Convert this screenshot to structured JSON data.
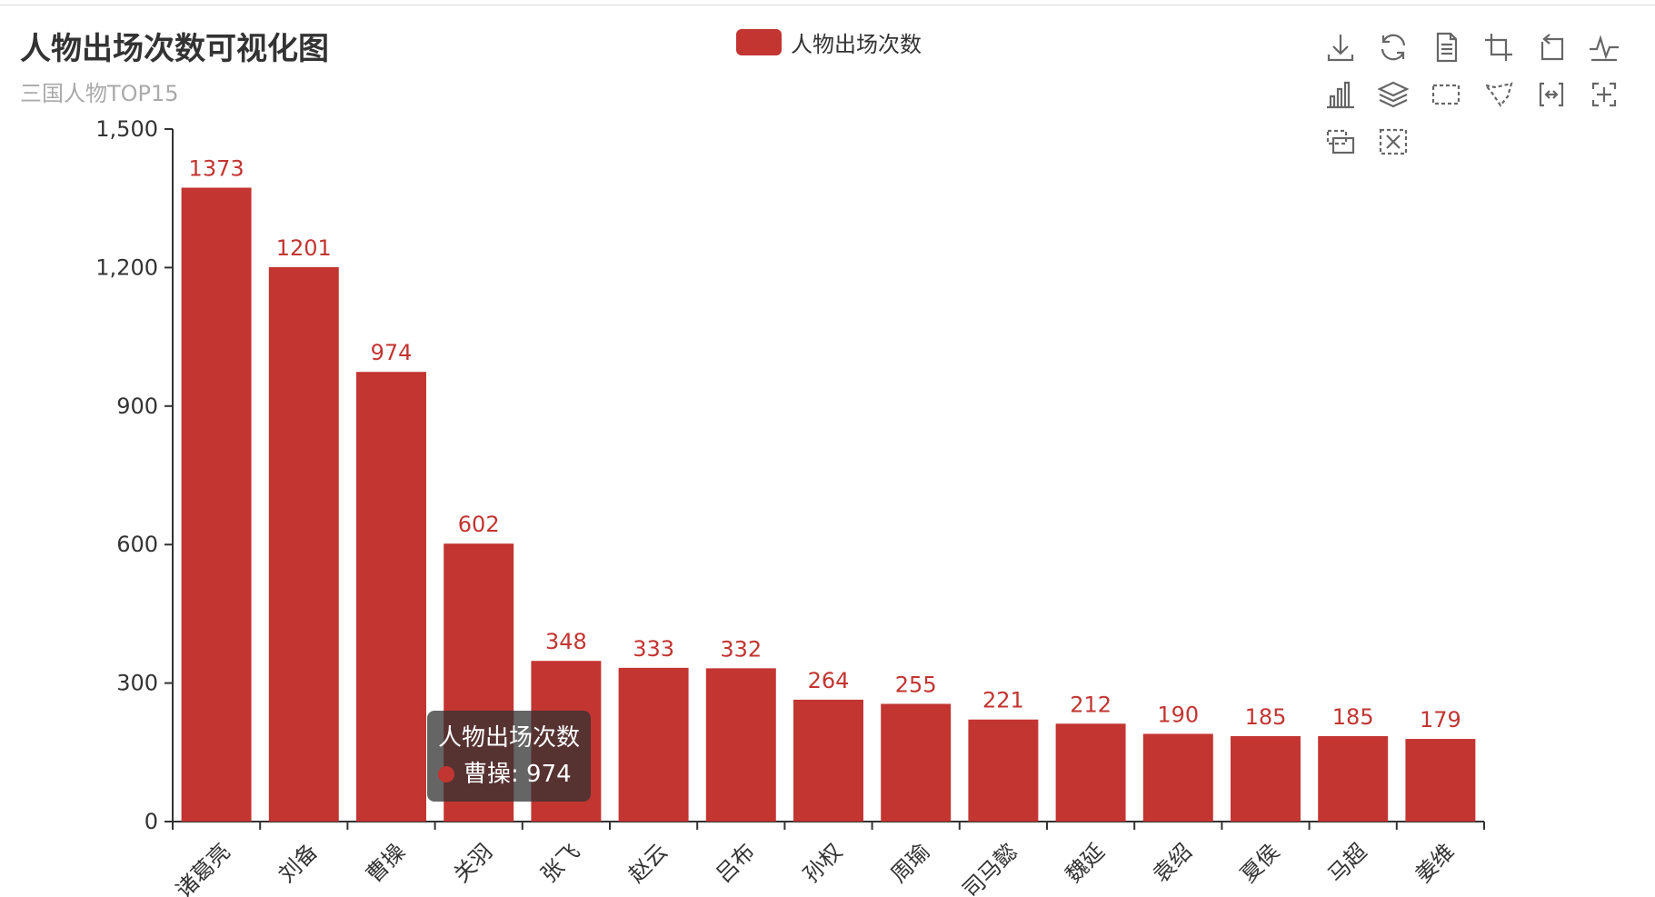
{
  "title": "人物出场次数可视化图",
  "subtitle": "三国人物TOP15",
  "legend": {
    "label": "人物出场次数",
    "color": "#c23531"
  },
  "toolbox": {
    "icons": [
      "download-icon",
      "refresh-icon",
      "data-view-icon",
      "zoom-icon",
      "zoom-reset-icon",
      "line-chart-icon",
      "bar-chart-icon",
      "stack-icon",
      "rect-select-icon",
      "lasso-select-icon",
      "keep-select-icon",
      "clear-select-icon",
      "brush-rect-icon",
      "brush-clear-icon"
    ]
  },
  "tooltip": {
    "series": "人物出场次数",
    "item": "曹操: 974"
  },
  "chart_data": {
    "type": "bar",
    "categories": [
      "诸葛亮",
      "刘备",
      "曹操",
      "关羽",
      "张飞",
      "赵云",
      "吕布",
      "孙权",
      "周瑜",
      "司马懿",
      "魏延",
      "袁绍",
      "夏侯",
      "马超",
      "姜维"
    ],
    "series": [
      {
        "name": "人物出场次数",
        "values": [
          1373,
          1201,
          974,
          602,
          348,
          333,
          332,
          264,
          255,
          221,
          212,
          190,
          185,
          185,
          179
        ]
      }
    ],
    "ylim": [
      0,
      1500
    ],
    "yticks": [
      "0",
      "300",
      "600",
      "900",
      "1,200",
      "1,500"
    ],
    "ytick_values": [
      0,
      300,
      600,
      900,
      1200,
      1500
    ],
    "bar_color": "#c23531",
    "label_color": "#c23531",
    "legend_position": "top-center",
    "grid": false
  }
}
